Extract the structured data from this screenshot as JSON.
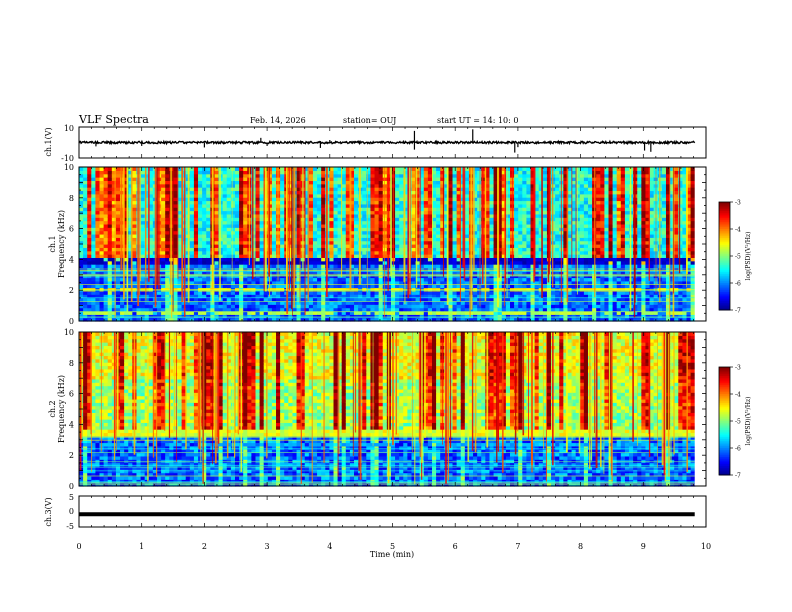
{
  "header": {
    "title": "VLF Spectra",
    "date": "Feb. 14, 2026",
    "station": "station= OUJ",
    "start": "start  UT =   14: 10: 0"
  },
  "chart_data": [
    {
      "type": "line",
      "id": "ch1-waveform",
      "ylabel": "ch.1(V)",
      "ylim": [
        -10,
        10
      ],
      "yticks": [
        "10",
        "-10"
      ],
      "xlim": [
        0,
        10
      ],
      "baseline": 0,
      "spikes": [
        {
          "t": 0.27,
          "v": -2.5
        },
        {
          "t": 1.0,
          "v": -2.2
        },
        {
          "t": 2.0,
          "v": -3.2
        },
        {
          "t": 2.9,
          "v": 3.0
        },
        {
          "t": 3.0,
          "v": -2.2
        },
        {
          "t": 3.85,
          "v": -3.5
        },
        {
          "t": 4.0,
          "v": 1.6
        },
        {
          "t": 5.35,
          "v": 7.5
        },
        {
          "t": 5.35,
          "v": -4.6
        },
        {
          "t": 6.28,
          "v": 8.5
        },
        {
          "t": 6.95,
          "v": -6.5
        },
        {
          "t": 7.0,
          "v": -3.0
        },
        {
          "t": 9.02,
          "v": -5.2
        },
        {
          "t": 9.12,
          "v": -6.0
        }
      ]
    },
    {
      "type": "heatmap",
      "id": "ch1-spectrogram",
      "ylabel": "ch.1\nFrequency (kHz)",
      "ylim": [
        0,
        10
      ],
      "yticks": [
        "0",
        "2",
        "4",
        "6",
        "8",
        "10"
      ],
      "xlim": [
        0,
        10
      ],
      "data_xmax": 9.82,
      "colorbar": {
        "label": "log(PSD)(V²/Hz)",
        "range": [
          -7,
          -3
        ],
        "ticks": [
          "-3",
          "-4",
          "-5",
          "-6",
          "-7"
        ]
      },
      "bands": [
        {
          "fmin": 3.65,
          "fmax": 4.05,
          "level": -6.7
        },
        {
          "fmin": 2.0,
          "fmax": 2.2,
          "level": -4.4
        },
        {
          "fmin": 0.5,
          "fmax": 0.7,
          "level": -4.8
        }
      ]
    },
    {
      "type": "heatmap",
      "id": "ch2-spectrogram",
      "ylabel": "ch.2\nFrequency (kHz)",
      "ylim": [
        0,
        10
      ],
      "yticks": [
        "0",
        "2",
        "4",
        "6",
        "8",
        "10"
      ],
      "xlim": [
        0,
        10
      ],
      "data_xmax": 9.82,
      "colorbar": {
        "label": "log(PSD)(V²/Hz)",
        "range": [
          -7,
          -3
        ],
        "ticks": [
          "-3",
          "-4",
          "-5",
          "-6",
          "-7"
        ]
      },
      "bands": [
        {
          "fmin": 3.3,
          "fmax": 3.7,
          "level": -4.7
        },
        {
          "fmin": 2.6,
          "fmax": 2.8,
          "level": -5.8
        }
      ]
    },
    {
      "type": "line",
      "id": "ch3-waveform",
      "ylabel": "ch.3(V)",
      "ylim": [
        -5,
        5
      ],
      "yticks": [
        "5",
        "0",
        "-5"
      ],
      "xlim": [
        0,
        10
      ],
      "xlabel": "Time  (min)",
      "xticks": [
        "0",
        "1",
        "2",
        "3",
        "4",
        "5",
        "6",
        "7",
        "8",
        "9",
        "10"
      ],
      "baseline": -0.9
    }
  ]
}
